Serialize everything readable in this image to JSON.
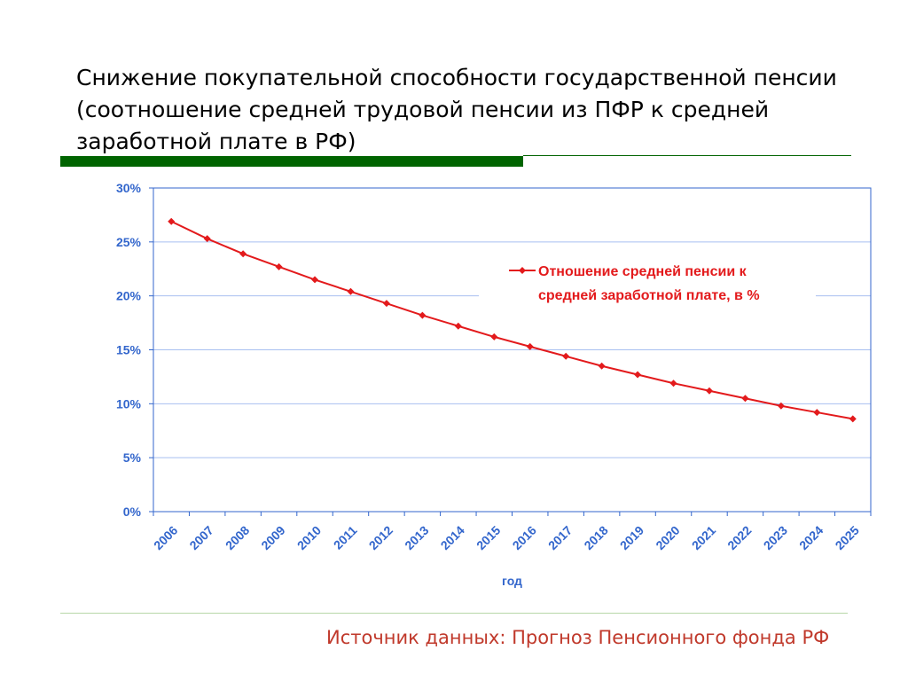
{
  "slide": {
    "title": "Снижение покупательной способности государственной пенсии (соотношение средней трудовой пенсии из ПФР к средней заработной плате в РФ)",
    "source": "Источник данных: Прогноз Пенсионного фонда РФ"
  },
  "colors": {
    "series": "#e31a1c",
    "axis_text": "#3366cc",
    "grid": "#a8bff0",
    "title_bar": "#006400"
  },
  "chart_data": {
    "type": "line",
    "xlabel": "год",
    "ylabel": "",
    "ylim": [
      0,
      30
    ],
    "y_ticks": [
      "0%",
      "5%",
      "10%",
      "15%",
      "20%",
      "25%",
      "30%"
    ],
    "grid": true,
    "legend_position": "right",
    "categories": [
      "2006",
      "2007",
      "2008",
      "2009",
      "2010",
      "2011",
      "2012",
      "2013",
      "2014",
      "2015",
      "2016",
      "2017",
      "2018",
      "2019",
      "2020",
      "2021",
      "2022",
      "2023",
      "2024",
      "2025"
    ],
    "series": [
      {
        "name": "Отношение средней пенсии к средней заработной плате, в %",
        "values": [
          26.9,
          25.3,
          23.9,
          22.7,
          21.5,
          20.4,
          19.3,
          18.2,
          17.2,
          16.2,
          15.3,
          14.4,
          13.5,
          12.7,
          11.9,
          11.2,
          10.5,
          9.8,
          9.2,
          8.6
        ]
      }
    ]
  }
}
